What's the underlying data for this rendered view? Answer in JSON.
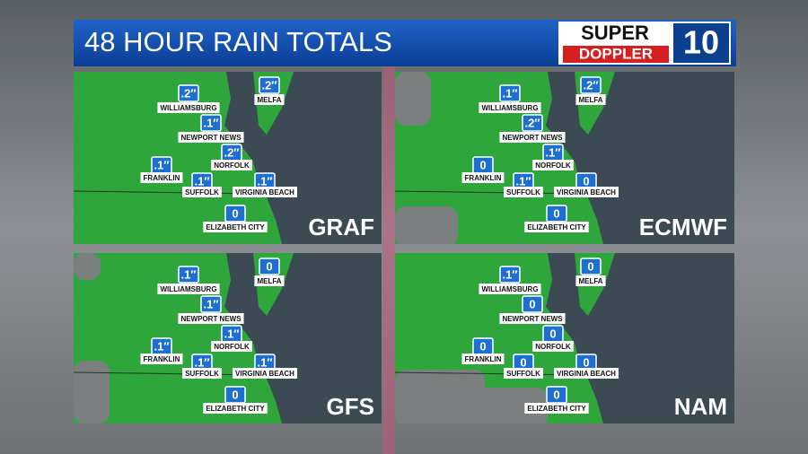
{
  "header": {
    "title": "48 HOUR RAIN TOTALS"
  },
  "logo": {
    "top": "SUPER",
    "bottom": "DOPPLER",
    "number": "10"
  },
  "panels": [
    {
      "model": "GRAF",
      "cities": [
        {
          "name": "WILLIAMSBURG",
          "value": ".2″"
        },
        {
          "name": "MELFA",
          "value": ".2″"
        },
        {
          "name": "NEWPORT NEWS",
          "value": ".1″"
        },
        {
          "name": "NORFOLK",
          "value": ".2″"
        },
        {
          "name": "FRANKLIN",
          "value": ".1″"
        },
        {
          "name": "SUFFOLK",
          "value": ".1″"
        },
        {
          "name": "VIRGINIA BEACH",
          "value": ".1″"
        },
        {
          "name": "ELIZABETH CITY",
          "value": "0"
        }
      ]
    },
    {
      "model": "ECMWF",
      "cities": [
        {
          "name": "WILLIAMSBURG",
          "value": ".1″"
        },
        {
          "name": "MELFA",
          "value": ".2″"
        },
        {
          "name": "NEWPORT NEWS",
          "value": ".2″"
        },
        {
          "name": "NORFOLK",
          "value": ".1″"
        },
        {
          "name": "FRANKLIN",
          "value": "0"
        },
        {
          "name": "SUFFOLK",
          "value": ".1″"
        },
        {
          "name": "VIRGINIA BEACH",
          "value": "0"
        },
        {
          "name": "ELIZABETH CITY",
          "value": "0"
        }
      ]
    },
    {
      "model": "GFS",
      "cities": [
        {
          "name": "WILLIAMSBURG",
          "value": ".1″"
        },
        {
          "name": "MELFA",
          "value": "0"
        },
        {
          "name": "NEWPORT NEWS",
          "value": ".1″"
        },
        {
          "name": "NORFOLK",
          "value": ".1″"
        },
        {
          "name": "FRANKLIN",
          "value": ".1″"
        },
        {
          "name": "SUFFOLK",
          "value": ".1″"
        },
        {
          "name": "VIRGINIA BEACH",
          "value": ".1″"
        },
        {
          "name": "ELIZABETH CITY",
          "value": "0"
        }
      ]
    },
    {
      "model": "NAM",
      "cities": [
        {
          "name": "WILLIAMSBURG",
          "value": ".1″"
        },
        {
          "name": "MELFA",
          "value": "0"
        },
        {
          "name": "NEWPORT NEWS",
          "value": "0"
        },
        {
          "name": "NORFOLK",
          "value": "0"
        },
        {
          "name": "FRANKLIN",
          "value": "0"
        },
        {
          "name": "SUFFOLK",
          "value": "0"
        },
        {
          "name": "VIRGINIA BEACH",
          "value": "0"
        },
        {
          "name": "ELIZABETH CITY",
          "value": "0"
        }
      ]
    }
  ]
}
